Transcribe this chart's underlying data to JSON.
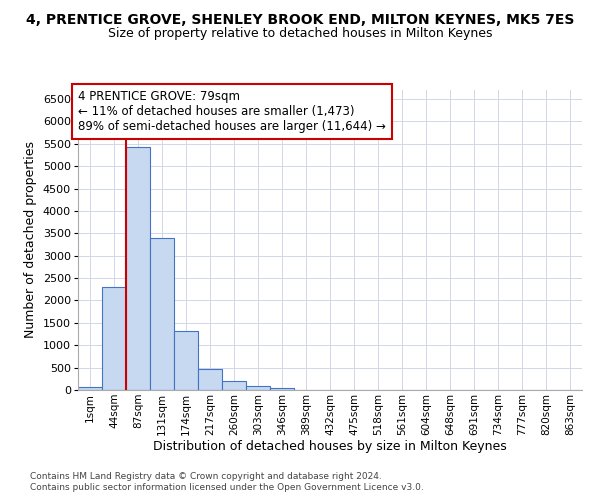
{
  "title": "4, PRENTICE GROVE, SHENLEY BROOK END, MILTON KEYNES, MK5 7ES",
  "subtitle": "Size of property relative to detached houses in Milton Keynes",
  "xlabel": "Distribution of detached houses by size in Milton Keynes",
  "ylabel": "Number of detached properties",
  "footer1": "Contains HM Land Registry data © Crown copyright and database right 2024.",
  "footer2": "Contains public sector information licensed under the Open Government Licence v3.0.",
  "bar_labels": [
    "1sqm",
    "44sqm",
    "87sqm",
    "131sqm",
    "174sqm",
    "217sqm",
    "260sqm",
    "303sqm",
    "346sqm",
    "389sqm",
    "432sqm",
    "475sqm",
    "518sqm",
    "561sqm",
    "604sqm",
    "648sqm",
    "691sqm",
    "734sqm",
    "777sqm",
    "820sqm",
    "863sqm"
  ],
  "bar_values": [
    70,
    2290,
    5420,
    3390,
    1320,
    480,
    190,
    80,
    50,
    0,
    0,
    0,
    0,
    0,
    0,
    0,
    0,
    0,
    0,
    0,
    0
  ],
  "bar_color": "#c6d9f0",
  "bar_edge_color": "#4472c4",
  "grid_color": "#d0d8e8",
  "annotation_text": "4 PRENTICE GROVE: 79sqm\n← 11% of detached houses are smaller (1,473)\n89% of semi-detached houses are larger (11,644) →",
  "annotation_box_color": "#ffffff",
  "annotation_box_edge": "#cc0000",
  "vline_x": 1.5,
  "vline_color": "#cc0000",
  "ylim": [
    0,
    6700
  ],
  "yticks": [
    0,
    500,
    1000,
    1500,
    2000,
    2500,
    3000,
    3500,
    4000,
    4500,
    5000,
    5500,
    6000,
    6500
  ],
  "background_color": "#ffffff",
  "title_fontsize": 10,
  "subtitle_fontsize": 9,
  "annot_fontsize": 8.5
}
